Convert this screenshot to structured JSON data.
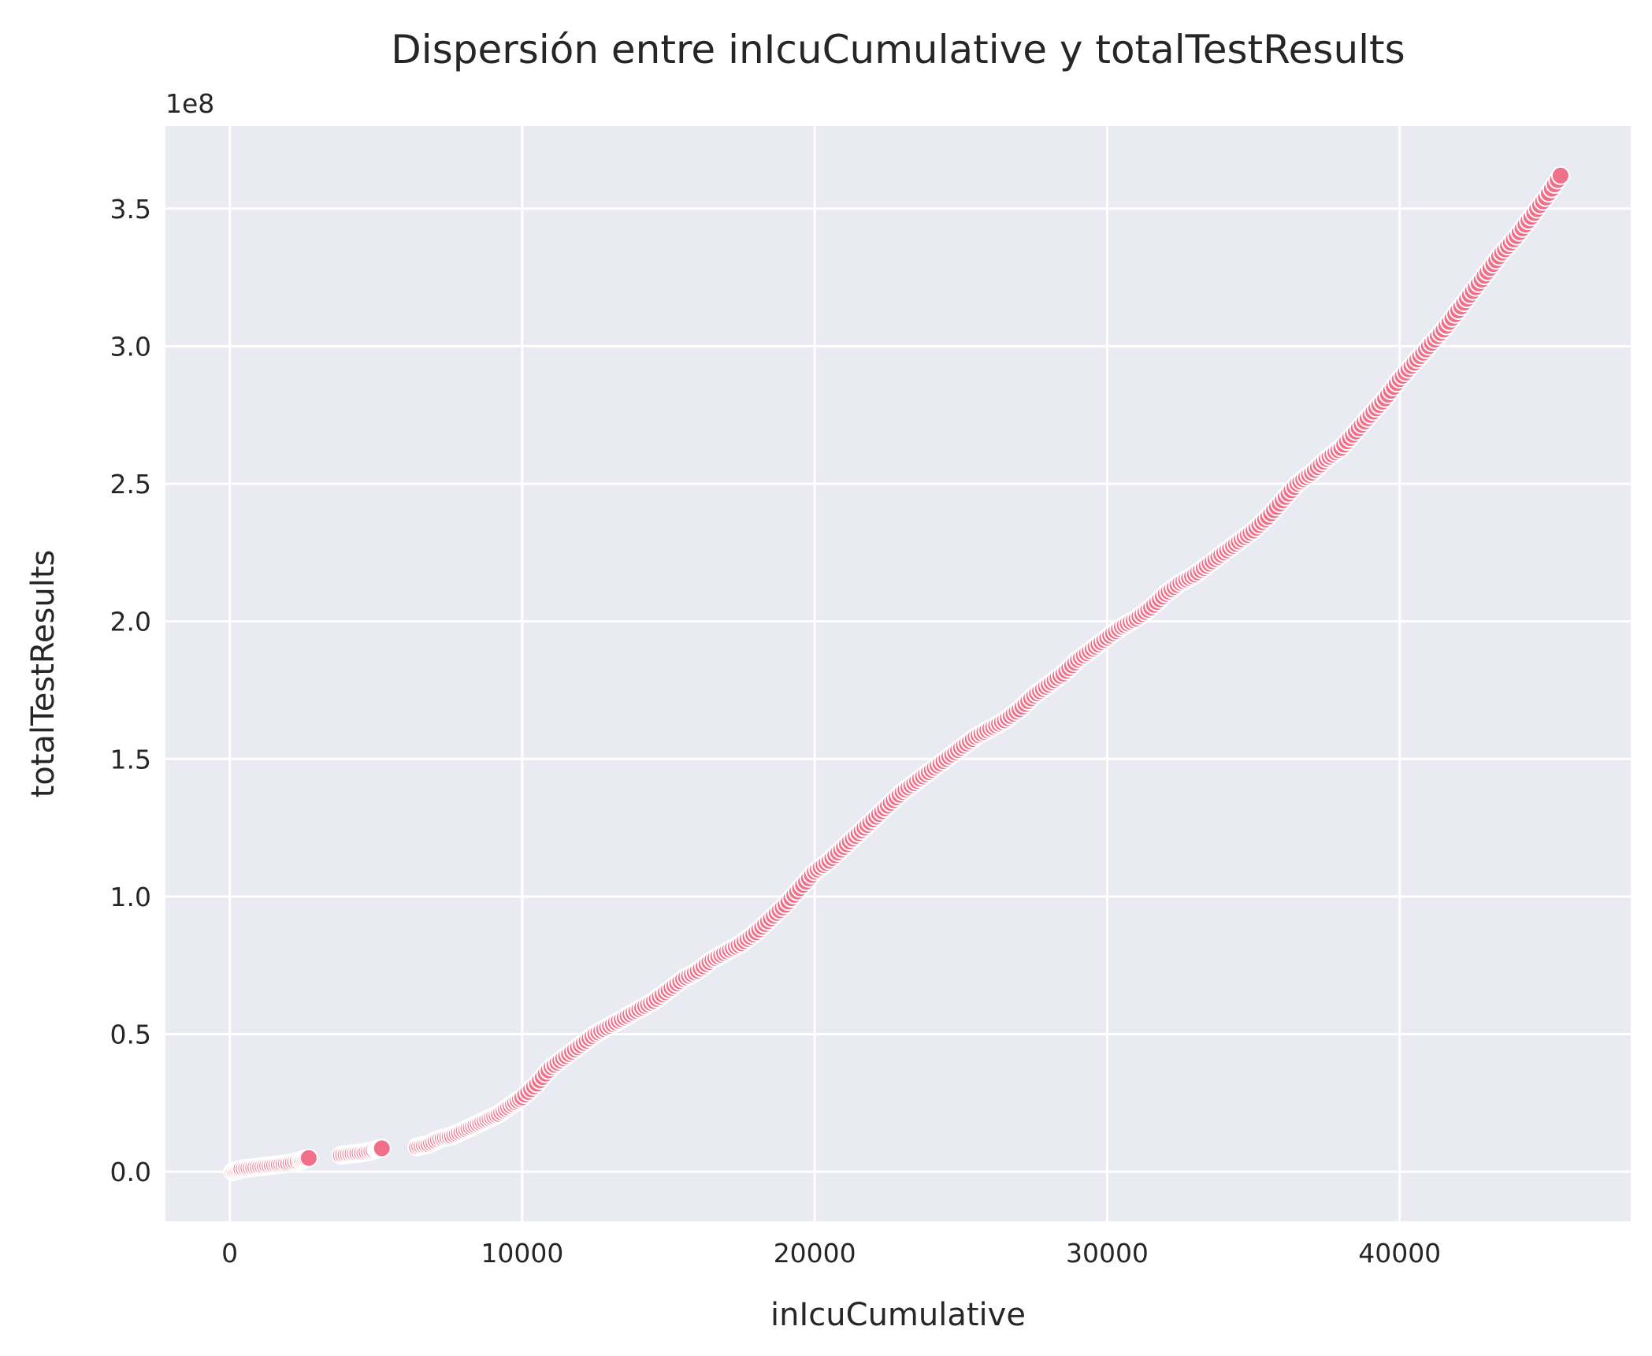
{
  "chart_data": {
    "type": "scatter",
    "title": "Dispersión entre inIcuCumulative y totalTestResults",
    "xlabel": "inIcuCumulative",
    "ylabel": "totalTestResults",
    "y_offset_label": "1e8",
    "y_scale": 100000000,
    "xlim": [
      -2200,
      47900
    ],
    "ylim": [
      -0.18,
      3.8
    ],
    "x_ticks": [
      0,
      10000,
      20000,
      30000,
      40000
    ],
    "x_tick_labels": [
      "0",
      "10000",
      "20000",
      "30000",
      "40000"
    ],
    "y_ticks": [
      0,
      0.5,
      1,
      1.5,
      2,
      2.5,
      3,
      3.5
    ],
    "y_tick_labels": [
      "0.0",
      "0.5",
      "1.0",
      "1.5",
      "2.0",
      "2.5",
      "3.0",
      "3.5"
    ],
    "grid": true,
    "colors": {
      "point": "#f0708a",
      "point_edge": "#ffffff",
      "background": "#eaeaf2",
      "grid": "#ffffff",
      "text": "#262626"
    },
    "points": [
      [
        100,
        0.0
      ],
      [
        400,
        0.01
      ],
      [
        800,
        0.015
      ],
      [
        1200,
        0.02
      ],
      [
        1600,
        0.025
      ],
      [
        2000,
        0.03
      ],
      [
        2400,
        0.04
      ],
      [
        2700,
        0.05
      ],
      [
        3800,
        0.06
      ],
      [
        4200,
        0.065
      ],
      [
        4600,
        0.07
      ],
      [
        5000,
        0.08
      ],
      [
        5200,
        0.085
      ],
      [
        6400,
        0.09
      ],
      [
        6800,
        0.1
      ],
      [
        7200,
        0.12
      ],
      [
        7600,
        0.13
      ],
      [
        8000,
        0.15
      ],
      [
        8400,
        0.17
      ],
      [
        8800,
        0.19
      ],
      [
        9200,
        0.21
      ],
      [
        9600,
        0.24
      ],
      [
        10000,
        0.27
      ],
      [
        10500,
        0.32
      ],
      [
        11000,
        0.38
      ],
      [
        11500,
        0.42
      ],
      [
        12000,
        0.46
      ],
      [
        12500,
        0.5
      ],
      [
        13000,
        0.53
      ],
      [
        13500,
        0.56
      ],
      [
        14000,
        0.59
      ],
      [
        14500,
        0.62
      ],
      [
        15000,
        0.66
      ],
      [
        15500,
        0.7
      ],
      [
        16000,
        0.73
      ],
      [
        16500,
        0.77
      ],
      [
        17000,
        0.8
      ],
      [
        17500,
        0.83
      ],
      [
        18000,
        0.87
      ],
      [
        18500,
        0.92
      ],
      [
        19000,
        0.97
      ],
      [
        19500,
        1.03
      ],
      [
        20000,
        1.09
      ],
      [
        20500,
        1.13
      ],
      [
        21000,
        1.18
      ],
      [
        21500,
        1.23
      ],
      [
        22000,
        1.28
      ],
      [
        22500,
        1.33
      ],
      [
        23000,
        1.38
      ],
      [
        23500,
        1.42
      ],
      [
        24000,
        1.46
      ],
      [
        24500,
        1.5
      ],
      [
        25000,
        1.54
      ],
      [
        25500,
        1.58
      ],
      [
        26000,
        1.61
      ],
      [
        26500,
        1.64
      ],
      [
        27000,
        1.68
      ],
      [
        27500,
        1.73
      ],
      [
        28000,
        1.77
      ],
      [
        28500,
        1.81
      ],
      [
        29000,
        1.86
      ],
      [
        29500,
        1.9
      ],
      [
        30000,
        1.94
      ],
      [
        30500,
        1.98
      ],
      [
        31000,
        2.01
      ],
      [
        31500,
        2.05
      ],
      [
        32000,
        2.1
      ],
      [
        32500,
        2.14
      ],
      [
        33000,
        2.17
      ],
      [
        33500,
        2.21
      ],
      [
        34000,
        2.25
      ],
      [
        34500,
        2.29
      ],
      [
        35000,
        2.33
      ],
      [
        35500,
        2.38
      ],
      [
        36000,
        2.44
      ],
      [
        36500,
        2.5
      ],
      [
        37000,
        2.54
      ],
      [
        37500,
        2.59
      ],
      [
        38000,
        2.63
      ],
      [
        38500,
        2.69
      ],
      [
        39000,
        2.75
      ],
      [
        39500,
        2.81
      ],
      [
        40000,
        2.88
      ],
      [
        40500,
        2.94
      ],
      [
        41000,
        3.0
      ],
      [
        41500,
        3.06
      ],
      [
        42000,
        3.13
      ],
      [
        42500,
        3.2
      ],
      [
        43000,
        3.27
      ],
      [
        43500,
        3.34
      ],
      [
        44000,
        3.4
      ],
      [
        44500,
        3.47
      ],
      [
        45000,
        3.54
      ],
      [
        45500,
        3.62
      ]
    ]
  }
}
